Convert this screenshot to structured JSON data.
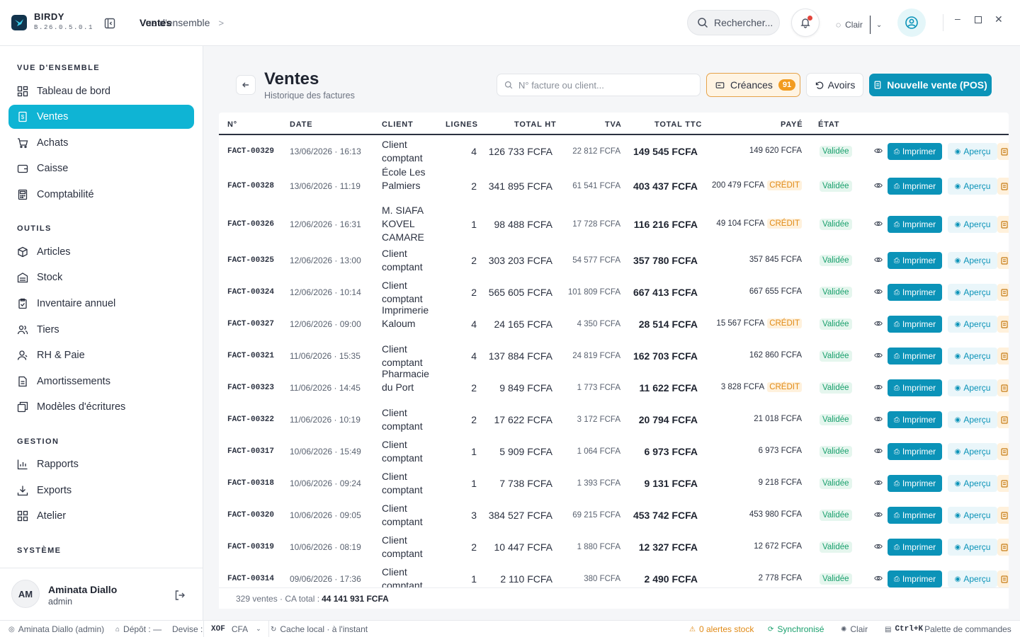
{
  "app": {
    "name": "BIRDY",
    "version": "B.26.0.5.0.1"
  },
  "breadcrumb": {
    "parent": "Vue d'ensemble",
    "separator": ">",
    "current": "Ventes"
  },
  "topbar": {
    "search_placeholder": "Rechercher...",
    "theme_label": "Clair"
  },
  "sidebar": {
    "sections": [
      {
        "title": "VUE D'ENSEMBLE",
        "items": [
          {
            "label": "Tableau de bord",
            "icon": "dashboard-icon"
          },
          {
            "label": "Ventes",
            "icon": "receipt-icon",
            "active": true
          },
          {
            "label": "Achats",
            "icon": "cart-icon"
          },
          {
            "label": "Caisse",
            "icon": "wallet-icon"
          },
          {
            "label": "Comptabilité",
            "icon": "calculator-icon"
          }
        ]
      },
      {
        "title": "OUTILS",
        "items": [
          {
            "label": "Articles",
            "icon": "box-icon"
          },
          {
            "label": "Stock",
            "icon": "warehouse-icon"
          },
          {
            "label": "Inventaire annuel",
            "icon": "clipboard-icon"
          },
          {
            "label": "Tiers",
            "icon": "users-icon"
          },
          {
            "label": "RH & Paie",
            "icon": "user-icon"
          },
          {
            "label": "Amortissements",
            "icon": "document-icon"
          },
          {
            "label": "Modèles d'écritures",
            "icon": "template-icon"
          }
        ]
      },
      {
        "title": "GESTION",
        "items": [
          {
            "label": "Rapports",
            "icon": "chart-icon"
          },
          {
            "label": "Exports",
            "icon": "download-icon"
          },
          {
            "label": "Atelier",
            "icon": "grid-icon"
          }
        ]
      },
      {
        "title": "SYSTÈME",
        "items": []
      }
    ],
    "user": {
      "initials": "AM",
      "name": "Aminata Diallo",
      "role": "admin"
    }
  },
  "page": {
    "title": "Ventes",
    "subtitle": "Historique des factures",
    "search_placeholder": "N° facture ou client...",
    "creances_label": "Créances",
    "creances_count": "91",
    "avoirs_label": "Avoirs",
    "new_sale_label": "Nouvelle vente (POS)"
  },
  "table": {
    "headers": [
      "N°",
      "DATE",
      "CLIENT",
      "LIGNES",
      "TOTAL HT",
      "TVA",
      "TOTAL TTC",
      "PAYÉ",
      "ÉTAT"
    ],
    "print_label": "Imprimer",
    "preview_label": "Aperçu",
    "rows": [
      {
        "num": "FACT-00329",
        "date": "13/06/2026 · 16:13",
        "client": "Client comptant",
        "lines": "4",
        "ht": "126 733 FCFA",
        "tva": "22 812 FCFA",
        "ttc": "149 545 FCFA",
        "paid": "149 620 FCFA",
        "credit": "",
        "etat": "Validée"
      },
      {
        "num": "FACT-00328",
        "date": "13/06/2026 · 11:19",
        "client": "École Les Palmiers",
        "lines": "2",
        "ht": "341 895 FCFA",
        "tva": "61 541 FCFA",
        "ttc": "403 437 FCFA",
        "paid": "200 479 FCFA",
        "credit": "CRÉDIT",
        "etat": "Validée"
      },
      {
        "num": "FACT-00326",
        "date": "12/06/2026 · 16:31",
        "client": "M. SIAFA KOVEL CAMARE",
        "lines": "1",
        "ht": "98 488 FCFA",
        "tva": "17 728 FCFA",
        "ttc": "116 216 FCFA",
        "paid": "49 104 FCFA",
        "credit": "CRÉDIT",
        "etat": "Validée"
      },
      {
        "num": "FACT-00325",
        "date": "12/06/2026 · 13:00",
        "client": "Client comptant",
        "lines": "2",
        "ht": "303 203 FCFA",
        "tva": "54 577 FCFA",
        "ttc": "357 780 FCFA",
        "paid": "357 845 FCFA",
        "credit": "",
        "etat": "Validée"
      },
      {
        "num": "FACT-00324",
        "date": "12/06/2026 · 10:14",
        "client": "Client comptant",
        "lines": "2",
        "ht": "565 605 FCFA",
        "tva": "101 809 FCFA",
        "ttc": "667 413 FCFA",
        "paid": "667 655 FCFA",
        "credit": "",
        "etat": "Validée"
      },
      {
        "num": "FACT-00327",
        "date": "12/06/2026 · 09:00",
        "client": "Imprimerie Kaloum",
        "lines": "4",
        "ht": "24 165 FCFA",
        "tva": "4 350 FCFA",
        "ttc": "28 514 FCFA",
        "paid": "15 567 FCFA",
        "credit": "CRÉDIT",
        "etat": "Validée"
      },
      {
        "num": "FACT-00321",
        "date": "11/06/2026 · 15:35",
        "client": "Client comptant",
        "lines": "4",
        "ht": "137 884 FCFA",
        "tva": "24 819 FCFA",
        "ttc": "162 703 FCFA",
        "paid": "162 860 FCFA",
        "credit": "",
        "etat": "Validée"
      },
      {
        "num": "FACT-00323",
        "date": "11/06/2026 · 14:45",
        "client": "Pharmacie du Port",
        "lines": "2",
        "ht": "9 849 FCFA",
        "tva": "1 773 FCFA",
        "ttc": "11 622 FCFA",
        "paid": "3 828 FCFA",
        "credit": "CRÉDIT",
        "etat": "Validée"
      },
      {
        "num": "FACT-00322",
        "date": "11/06/2026 · 10:19",
        "client": "Client comptant",
        "lines": "2",
        "ht": "17 622 FCFA",
        "tva": "3 172 FCFA",
        "ttc": "20 794 FCFA",
        "paid": "21 018 FCFA",
        "credit": "",
        "etat": "Validée"
      },
      {
        "num": "FACT-00317",
        "date": "10/06/2026 · 15:49",
        "client": "Client comptant",
        "lines": "1",
        "ht": "5 909 FCFA",
        "tva": "1 064 FCFA",
        "ttc": "6 973 FCFA",
        "paid": "6 973 FCFA",
        "credit": "",
        "etat": "Validée"
      },
      {
        "num": "FACT-00318",
        "date": "10/06/2026 · 09:24",
        "client": "Client comptant",
        "lines": "1",
        "ht": "7 738 FCFA",
        "tva": "1 393 FCFA",
        "ttc": "9 131 FCFA",
        "paid": "9 218 FCFA",
        "credit": "",
        "etat": "Validée"
      },
      {
        "num": "FACT-00320",
        "date": "10/06/2026 · 09:05",
        "client": "Client comptant",
        "lines": "3",
        "ht": "384 527 FCFA",
        "tva": "69 215 FCFA",
        "ttc": "453 742 FCFA",
        "paid": "453 980 FCFA",
        "credit": "",
        "etat": "Validée"
      },
      {
        "num": "FACT-00319",
        "date": "10/06/2026 · 08:19",
        "client": "Client comptant",
        "lines": "2",
        "ht": "10 447 FCFA",
        "tva": "1 880 FCFA",
        "ttc": "12 327 FCFA",
        "paid": "12 672 FCFA",
        "credit": "",
        "etat": "Validée"
      },
      {
        "num": "FACT-00314",
        "date": "09/06/2026 · 17:36",
        "client": "Client comptant",
        "lines": "1",
        "ht": "2 110 FCFA",
        "tva": "380 FCFA",
        "ttc": "2 490 FCFA",
        "paid": "2 778 FCFA",
        "credit": "",
        "etat": "Validée"
      }
    ],
    "footer": {
      "count_text": "329 ventes · CA total :",
      "total": "44 141 931 FCFA"
    }
  },
  "statusbar": {
    "user": "Aminata Diallo (admin)",
    "depot": "Dépôt : —",
    "devise_label": "Devise :",
    "devise_code": "XOF",
    "devise_value": "CFA",
    "cache": "Cache local · à l'instant",
    "alerts": "0 alertes stock",
    "sync": "Synchronisé",
    "theme": "Clair",
    "shortcut": "Ctrl+K",
    "palette": "Palette de commandes"
  },
  "colors": {
    "accent": "#0fb4d4",
    "primary_button": "#0b93b8",
    "credit": "#e08a16",
    "success": "#1aa06d"
  }
}
